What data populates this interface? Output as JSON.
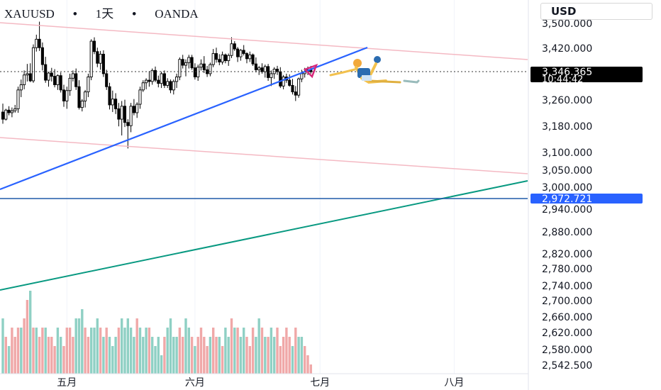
{
  "header": {
    "symbol": "XAUUSD",
    "interval": "1天",
    "broker": "OANDA",
    "separator": "•"
  },
  "currency_button": {
    "label": "USD"
  },
  "price_tags": {
    "current": {
      "price": "3,346.365",
      "countdown": "10:44:42",
      "value": 3346.365,
      "color": "#000000"
    },
    "line": {
      "price": "2,972.721",
      "value": 2972.721,
      "color": "#2962ff"
    }
  },
  "chart_data": {
    "type": "candlestick",
    "y_tick_labels": [
      "3,500.000",
      "3,420.000",
      "3,340.000",
      "3,260.000",
      "3,180.000",
      "3,100.000",
      "3,050.000",
      "3,000.000",
      "2,940.000",
      "2,880.000",
      "2,820.000",
      "2,780.000",
      "2,740.000",
      "2,700.000",
      "2,660.000",
      "2,620.000",
      "2,580.000",
      "2,542.500"
    ],
    "y_tick_values": [
      3500,
      3420,
      3340,
      3260,
      3180,
      3100,
      3050,
      3000,
      2940,
      2880,
      2820,
      2780,
      2740,
      2700,
      2660,
      2620,
      2580,
      2542.5
    ],
    "x_tick_labels": [
      "五月",
      "六月",
      "七月",
      "八月"
    ],
    "x_tick_index": [
      21,
      63,
      104,
      148
    ],
    "ohlc": [
      [
        3222,
        3248,
        3186,
        3200
      ],
      [
        3200,
        3232,
        3196,
        3228
      ],
      [
        3228,
        3240,
        3212,
        3220
      ],
      [
        3220,
        3236,
        3206,
        3226
      ],
      [
        3226,
        3244,
        3220,
        3232
      ],
      [
        3232,
        3300,
        3220,
        3290
      ],
      [
        3290,
        3322,
        3268,
        3306
      ],
      [
        3306,
        3350,
        3292,
        3336
      ],
      [
        3336,
        3370,
        3316,
        3340
      ],
      [
        3340,
        3372,
        3314,
        3318
      ],
      [
        3318,
        3430,
        3312,
        3420
      ],
      [
        3420,
        3460,
        3408,
        3446
      ],
      [
        3446,
        3500,
        3410,
        3420
      ],
      [
        3420,
        3436,
        3350,
        3368
      ],
      [
        3368,
        3392,
        3312,
        3320
      ],
      [
        3320,
        3346,
        3300,
        3342
      ],
      [
        3342,
        3358,
        3316,
        3332
      ],
      [
        3332,
        3354,
        3298,
        3306
      ],
      [
        3306,
        3338,
        3290,
        3334
      ],
      [
        3334,
        3344,
        3282,
        3290
      ],
      [
        3290,
        3306,
        3238,
        3256
      ],
      [
        3256,
        3300,
        3232,
        3288
      ],
      [
        3288,
        3340,
        3272,
        3326
      ],
      [
        3326,
        3350,
        3316,
        3340
      ],
      [
        3340,
        3356,
        3290,
        3300
      ],
      [
        3300,
        3320,
        3230,
        3236
      ],
      [
        3236,
        3262,
        3224,
        3256
      ],
      [
        3256,
        3290,
        3236,
        3284
      ],
      [
        3284,
        3340,
        3268,
        3330
      ],
      [
        3330,
        3446,
        3320,
        3440
      ],
      [
        3440,
        3452,
        3400,
        3408
      ],
      [
        3408,
        3420,
        3360,
        3372
      ],
      [
        3372,
        3410,
        3352,
        3400
      ],
      [
        3400,
        3412,
        3330,
        3340
      ],
      [
        3340,
        3352,
        3290,
        3300
      ],
      [
        3300,
        3312,
        3230,
        3244
      ],
      [
        3244,
        3288,
        3222,
        3262
      ],
      [
        3262,
        3280,
        3216,
        3232
      ],
      [
        3232,
        3250,
        3178,
        3200
      ],
      [
        3200,
        3256,
        3150,
        3240
      ],
      [
        3240,
        3260,
        3176,
        3190
      ],
      [
        3190,
        3200,
        3110,
        3180
      ],
      [
        3180,
        3250,
        3160,
        3240
      ],
      [
        3240,
        3262,
        3212,
        3220
      ],
      [
        3220,
        3252,
        3204,
        3246
      ],
      [
        3246,
        3300,
        3232,
        3290
      ],
      [
        3290,
        3320,
        3284,
        3312
      ],
      [
        3312,
        3326,
        3292,
        3320
      ],
      [
        3320,
        3348,
        3300,
        3316
      ],
      [
        3316,
        3356,
        3306,
        3350
      ],
      [
        3350,
        3362,
        3314,
        3320
      ],
      [
        3320,
        3334,
        3298,
        3310
      ],
      [
        3310,
        3346,
        3296,
        3340
      ],
      [
        3340,
        3350,
        3296,
        3304
      ],
      [
        3304,
        3326,
        3296,
        3316
      ],
      [
        3316,
        3322,
        3280,
        3290
      ],
      [
        3290,
        3322,
        3276,
        3316
      ],
      [
        3316,
        3340,
        3296,
        3330
      ],
      [
        3330,
        3390,
        3320,
        3384
      ],
      [
        3384,
        3398,
        3356,
        3366
      ],
      [
        3366,
        3384,
        3332,
        3374
      ],
      [
        3374,
        3398,
        3356,
        3390
      ],
      [
        3390,
        3398,
        3352,
        3358
      ],
      [
        3358,
        3372,
        3322,
        3330
      ],
      [
        3330,
        3368,
        3318,
        3360
      ],
      [
        3360,
        3384,
        3350,
        3370
      ],
      [
        3370,
        3394,
        3342,
        3352
      ],
      [
        3352,
        3364,
        3330,
        3340
      ],
      [
        3340,
        3374,
        3332,
        3368
      ],
      [
        3368,
        3416,
        3360,
        3402
      ],
      [
        3402,
        3420,
        3374,
        3384
      ],
      [
        3384,
        3400,
        3366,
        3376
      ],
      [
        3376,
        3408,
        3368,
        3398
      ],
      [
        3398,
        3402,
        3372,
        3380
      ],
      [
        3380,
        3402,
        3364,
        3396
      ],
      [
        3396,
        3452,
        3388,
        3432
      ],
      [
        3432,
        3440,
        3410,
        3416
      ],
      [
        3416,
        3422,
        3376,
        3392
      ],
      [
        3392,
        3416,
        3380,
        3412
      ],
      [
        3412,
        3428,
        3396,
        3402
      ],
      [
        3402,
        3406,
        3372,
        3386
      ],
      [
        3386,
        3408,
        3376,
        3398
      ],
      [
        3398,
        3402,
        3364,
        3370
      ],
      [
        3370,
        3390,
        3344,
        3352
      ],
      [
        3352,
        3364,
        3336,
        3358
      ],
      [
        3358,
        3372,
        3340,
        3346
      ],
      [
        3346,
        3368,
        3328,
        3362
      ],
      [
        3362,
        3370,
        3318,
        3328
      ],
      [
        3328,
        3350,
        3302,
        3340
      ],
      [
        3340,
        3360,
        3324,
        3354
      ],
      [
        3354,
        3364,
        3336,
        3346
      ],
      [
        3346,
        3360,
        3296,
        3302
      ],
      [
        3302,
        3336,
        3292,
        3330
      ],
      [
        3330,
        3340,
        3312,
        3320
      ],
      [
        3320,
        3338,
        3300,
        3304
      ],
      [
        3304,
        3324,
        3276,
        3284
      ],
      [
        3284,
        3302,
        3256,
        3274
      ],
      [
        3274,
        3328,
        3266,
        3324
      ],
      [
        3324,
        3352,
        3314,
        3340
      ],
      [
        3340,
        3358,
        3328,
        3346
      ],
      [
        3346,
        3362,
        3336,
        3352
      ],
      [
        3352,
        3364,
        3340,
        3346
      ]
    ],
    "volume": [
      [
        6,
        "up"
      ],
      [
        4,
        "down"
      ],
      [
        3,
        "up"
      ],
      [
        5,
        "down"
      ],
      [
        4,
        "down"
      ],
      [
        5,
        "down"
      ],
      [
        5,
        "up"
      ],
      [
        6,
        "down"
      ],
      [
        8,
        "down"
      ],
      [
        9,
        "up"
      ],
      [
        5,
        "down"
      ],
      [
        5,
        "up"
      ],
      [
        4,
        "down"
      ],
      [
        5,
        "down"
      ],
      [
        5,
        "up"
      ],
      [
        4,
        "down"
      ],
      [
        4,
        "down"
      ],
      [
        3,
        "down"
      ],
      [
        5,
        "up"
      ],
      [
        4,
        "up"
      ],
      [
        3,
        "down"
      ],
      [
        5,
        "down"
      ],
      [
        5,
        "down"
      ],
      [
        4,
        "down"
      ],
      [
        6,
        "up"
      ],
      [
        6,
        "up"
      ],
      [
        7,
        "up"
      ],
      [
        5,
        "down"
      ],
      [
        4,
        "down"
      ],
      [
        5,
        "up"
      ],
      [
        5,
        "up"
      ],
      [
        6,
        "up"
      ],
      [
        5,
        "down"
      ],
      [
        4,
        "up"
      ],
      [
        5,
        "down"
      ],
      [
        4,
        "up"
      ],
      [
        3,
        "up"
      ],
      [
        4,
        "up"
      ],
      [
        5,
        "down"
      ],
      [
        6,
        "up"
      ],
      [
        5,
        "up"
      ],
      [
        6,
        "up"
      ],
      [
        5,
        "up"
      ],
      [
        4,
        "up"
      ],
      [
        6,
        "down"
      ],
      [
        5,
        "up"
      ],
      [
        4,
        "up"
      ],
      [
        5,
        "up"
      ],
      [
        5,
        "down"
      ],
      [
        4,
        "up"
      ],
      [
        3,
        "up"
      ],
      [
        4,
        "up"
      ],
      [
        2,
        "up"
      ],
      [
        4,
        "down"
      ],
      [
        5,
        "up"
      ],
      [
        6,
        "up"
      ],
      [
        4,
        "up"
      ],
      [
        4,
        "up"
      ],
      [
        5,
        "down"
      ],
      [
        4,
        "down"
      ],
      [
        6,
        "up"
      ],
      [
        5,
        "up"
      ],
      [
        4,
        "down"
      ],
      [
        3,
        "up"
      ],
      [
        4,
        "down"
      ],
      [
        5,
        "down"
      ],
      [
        4,
        "down"
      ],
      [
        3,
        "down"
      ],
      [
        4,
        "up"
      ],
      [
        5,
        "down"
      ],
      [
        4,
        "down"
      ],
      [
        4,
        "up"
      ],
      [
        3,
        "down"
      ],
      [
        5,
        "up"
      ],
      [
        4,
        "up"
      ],
      [
        6,
        "down"
      ],
      [
        5,
        "up"
      ],
      [
        5,
        "down"
      ],
      [
        4,
        "up"
      ],
      [
        5,
        "up"
      ],
      [
        4,
        "down"
      ],
      [
        3,
        "down"
      ],
      [
        5,
        "down"
      ],
      [
        4,
        "up"
      ],
      [
        6,
        "up"
      ],
      [
        5,
        "down"
      ],
      [
        4,
        "up"
      ],
      [
        4,
        "down"
      ],
      [
        5,
        "up"
      ],
      [
        4,
        "up"
      ],
      [
        5,
        "down"
      ],
      [
        3,
        "down"
      ],
      [
        4,
        "down"
      ],
      [
        5,
        "down"
      ],
      [
        4,
        "down"
      ],
      [
        3,
        "up"
      ],
      [
        5,
        "down"
      ],
      [
        4,
        "up"
      ],
      [
        4,
        "up"
      ],
      [
        3,
        "down"
      ],
      [
        2,
        "down"
      ],
      [
        1,
        "down"
      ]
    ],
    "horizontal_lines": [
      {
        "value": 2972.721,
        "color": "#1e5aa8"
      },
      {
        "value": 3346.365,
        "color": "#000000",
        "style": "dotted"
      }
    ],
    "colors": {
      "up_volume": "#8fd0c4",
      "down_volume": "#f0a8a8",
      "candle": "#000000",
      "channel": "#f4b9c3",
      "trendline": "#2962ff",
      "long_trend": "#089981"
    }
  }
}
